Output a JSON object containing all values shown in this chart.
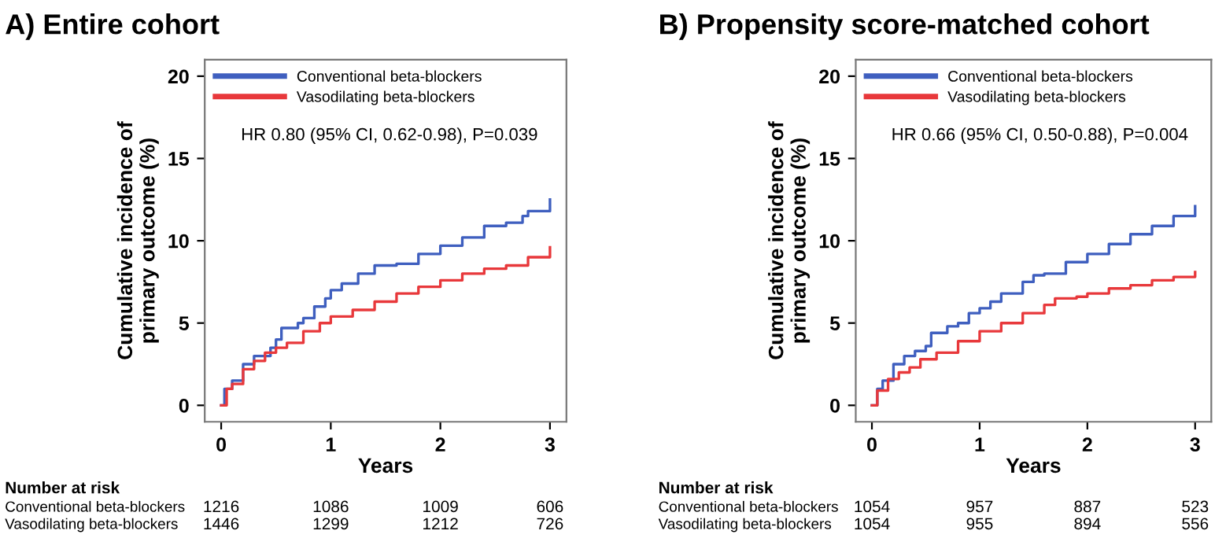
{
  "chart_data": [
    {
      "type": "step",
      "title": "A) Entire cohort",
      "xlabel": "Years",
      "ylabel": "Cumulative incidence of\nprimary outcome (%)",
      "xlim": [
        -0.15,
        3.15
      ],
      "ylim": [
        -1,
        21
      ],
      "xticks": [
        0,
        1,
        2,
        3
      ],
      "yticks": [
        0,
        5,
        10,
        15,
        20
      ],
      "grid": false,
      "legend": "top left",
      "annotations": [
        "HR 0.80 (95% CI, 0.62-0.98), P=0.039",
        "Number at risk",
        "Conventional beta-blockers",
        "1216",
        "1086",
        "1009",
        "606",
        "Vasodilating beta-blockers",
        "1446",
        "1299",
        "1212",
        "726"
      ],
      "series": [
        {
          "name": "Conventional beta-blockers",
          "color": "#3f5fbf",
          "x": [
            0,
            0.03,
            0.1,
            0.2,
            0.3,
            0.45,
            0.5,
            0.55,
            0.7,
            0.75,
            0.85,
            0.95,
            1.0,
            1.1,
            1.25,
            1.4,
            1.6,
            1.8,
            2.0,
            2.2,
            2.4,
            2.6,
            2.75,
            2.8,
            3.0
          ],
          "values": [
            0,
            1.0,
            1.5,
            2.5,
            3.0,
            3.5,
            4.0,
            4.7,
            5.0,
            5.3,
            6.0,
            6.5,
            7.0,
            7.4,
            8.0,
            8.5,
            8.6,
            9.2,
            9.7,
            10.2,
            10.9,
            11.1,
            11.5,
            11.8,
            12.5
          ]
        },
        {
          "name": "Vasodilating beta-blockers",
          "color": "#e8383b",
          "x": [
            0,
            0.05,
            0.1,
            0.2,
            0.3,
            0.4,
            0.5,
            0.6,
            0.75,
            0.9,
            1.0,
            1.2,
            1.4,
            1.6,
            1.8,
            2.0,
            2.2,
            2.4,
            2.6,
            2.8,
            3.0
          ],
          "values": [
            0,
            1.0,
            1.3,
            2.2,
            2.7,
            3.2,
            3.5,
            3.8,
            4.5,
            5.0,
            5.4,
            5.8,
            6.3,
            6.8,
            7.2,
            7.6,
            8.0,
            8.3,
            8.5,
            9.0,
            9.6
          ]
        }
      ]
    },
    {
      "type": "step",
      "title": "B) Propensity score-matched cohort",
      "xlabel": "Years",
      "ylabel": "Cumulative incidence of\nprimary outcome (%)",
      "xlim": [
        -0.15,
        3.15
      ],
      "ylim": [
        -1,
        21
      ],
      "xticks": [
        0,
        1,
        2,
        3
      ],
      "yticks": [
        0,
        5,
        10,
        15,
        20
      ],
      "grid": false,
      "legend": "top left",
      "annotations": [
        "HR 0.66 (95% CI, 0.50-0.88), P=0.004",
        "Number at risk",
        "Conventional beta-blockers",
        "1054",
        "957",
        "887",
        "523",
        "Vasodilating beta-blockers",
        "1054",
        "955",
        "894",
        "556"
      ],
      "series": [
        {
          "name": "Conventional beta-blockers",
          "color": "#3f5fbf",
          "x": [
            0,
            0.05,
            0.1,
            0.2,
            0.3,
            0.4,
            0.5,
            0.55,
            0.7,
            0.8,
            0.9,
            1.0,
            1.1,
            1.2,
            1.4,
            1.5,
            1.6,
            1.8,
            2.0,
            2.2,
            2.4,
            2.6,
            2.8,
            3.0
          ],
          "values": [
            0,
            1.0,
            1.5,
            2.5,
            3.0,
            3.3,
            3.6,
            4.4,
            4.8,
            5.0,
            5.6,
            5.9,
            6.3,
            6.8,
            7.5,
            7.9,
            8.0,
            8.7,
            9.2,
            9.8,
            10.4,
            10.9,
            11.5,
            12.1
          ]
        },
        {
          "name": "Vasodilating beta-blockers",
          "color": "#e8383b",
          "x": [
            0,
            0.05,
            0.15,
            0.25,
            0.35,
            0.45,
            0.6,
            0.8,
            1.0,
            1.2,
            1.4,
            1.6,
            1.7,
            1.9,
            2.0,
            2.2,
            2.4,
            2.6,
            2.8,
            3.0
          ],
          "values": [
            0,
            0.9,
            1.6,
            2.0,
            2.3,
            2.8,
            3.2,
            3.9,
            4.5,
            5.0,
            5.6,
            6.1,
            6.5,
            6.6,
            6.8,
            7.1,
            7.3,
            7.6,
            7.8,
            8.1
          ]
        }
      ]
    }
  ]
}
